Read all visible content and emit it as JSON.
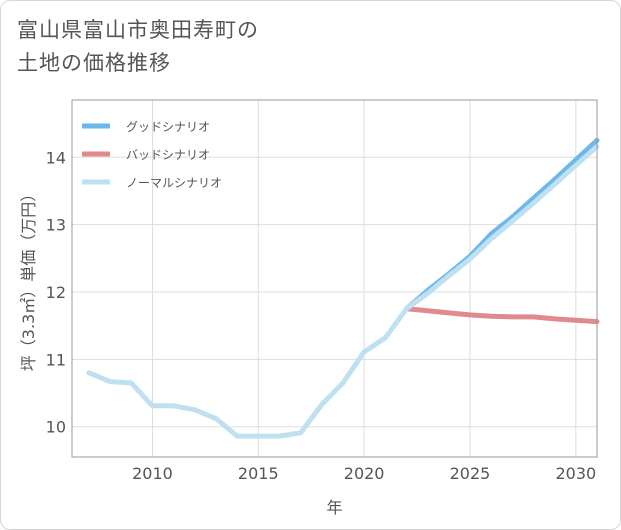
{
  "header": {
    "title_line1": "富山県富山市奥田寿町の",
    "title_line2": "土地の価格推移"
  },
  "chart_data": {
    "type": "line",
    "xlabel": "年",
    "ylabel": "坪（3.3㎡）単価（万円）",
    "xlim": [
      2006.2,
      2031
    ],
    "ylim": [
      9.55,
      14.85
    ],
    "x_ticks": [
      2010,
      2015,
      2020,
      2025,
      2030
    ],
    "y_ticks": [
      10,
      11,
      12,
      13,
      14
    ],
    "grid": true,
    "legend_position": "top-left",
    "series": [
      {
        "name": "グッドシナリオ",
        "color": "#6cb8ea",
        "x": [
          2022,
          2023,
          2024,
          2025,
          2026,
          2027,
          2028,
          2029,
          2030,
          2031
        ],
        "values": [
          11.75,
          12.02,
          12.27,
          12.53,
          12.86,
          13.11,
          13.39,
          13.67,
          13.96,
          14.25
        ]
      },
      {
        "name": "バッドシナリオ",
        "color": "#e08a8f",
        "x": [
          2022,
          2023,
          2024,
          2025,
          2026,
          2027,
          2028,
          2029,
          2030,
          2031
        ],
        "values": [
          11.75,
          11.72,
          11.69,
          11.66,
          11.64,
          11.63,
          11.63,
          11.6,
          11.58,
          11.56
        ]
      },
      {
        "name": "ノーマルシナリオ",
        "color": "#bfe0f1",
        "x": [
          2007,
          2008,
          2009,
          2010,
          2011,
          2012,
          2013,
          2014,
          2015,
          2016,
          2017,
          2018,
          2019,
          2020,
          2021,
          2022,
          2023,
          2024,
          2025,
          2026,
          2027,
          2028,
          2029,
          2030,
          2031
        ],
        "values": [
          10.8,
          10.67,
          10.65,
          10.31,
          10.31,
          10.25,
          10.12,
          9.86,
          9.86,
          9.86,
          9.91,
          10.33,
          10.65,
          11.11,
          11.32,
          11.75,
          11.98,
          12.24,
          12.49,
          12.79,
          13.05,
          13.32,
          13.6,
          13.88,
          14.16
        ]
      }
    ]
  }
}
